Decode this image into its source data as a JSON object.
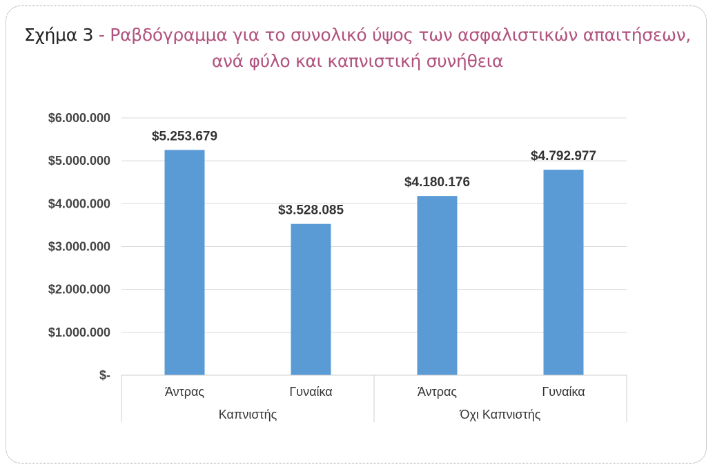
{
  "title": {
    "prefix": "Σχήμα 3",
    "separator": " - ",
    "line1": "Ραβδόγραμμα για το συνολικό ύψος των ασφαλιστικών απαιτήσεων,",
    "line2": "ανά φύλο και καπνιστική συνήθεια"
  },
  "chart_data": {
    "type": "bar",
    "categories": [
      "Άντρας",
      "Γυναίκα",
      "Άντρας",
      "Γυναίκα"
    ],
    "groups": [
      {
        "label": "Καπνιστής",
        "categories": [
          "Άντρας",
          "Γυναίκα"
        ]
      },
      {
        "label": "Όχι Καπνιστής",
        "categories": [
          "Άντρας",
          "Γυναίκα"
        ]
      }
    ],
    "values": [
      5253679,
      3528085,
      4180176,
      4792977
    ],
    "data_labels": [
      "$5.253.679",
      "$3.528.085",
      "$4.180.176",
      "$4.792.977"
    ],
    "yticks": [
      0,
      1000000,
      2000000,
      3000000,
      4000000,
      5000000,
      6000000
    ],
    "ytick_labels": [
      "$-",
      "$1.000.000",
      "$2.000.000",
      "$3.000.000",
      "$4.000.000",
      "$5.000.000",
      "$6.000.000"
    ],
    "ylim": [
      0,
      6000000
    ],
    "grid": true,
    "legend": "none",
    "bar_color": "#5b9bd5",
    "grid_color": "#d9d9d9"
  }
}
